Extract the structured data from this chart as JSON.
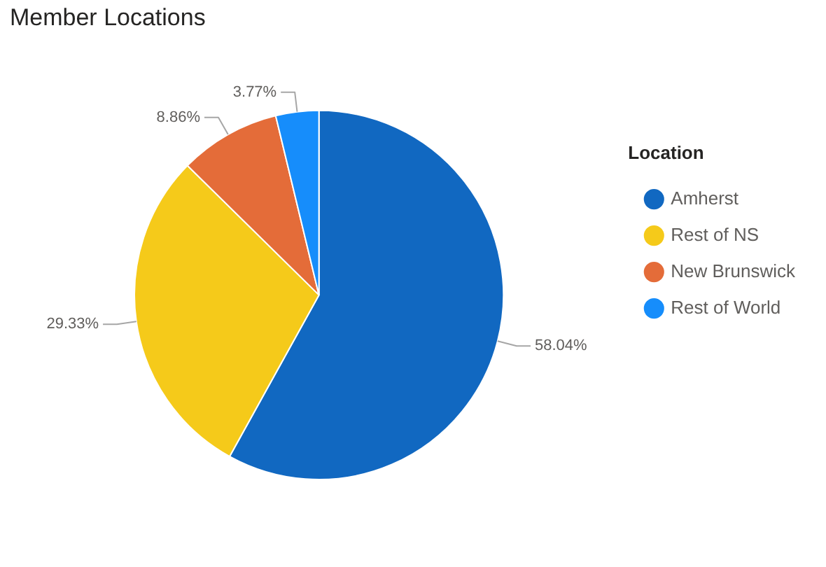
{
  "chart_data": {
    "type": "pie",
    "title": "Member Locations",
    "legend_title": "Location",
    "legend": "right",
    "categories": [
      "Amherst",
      "Rest of NS",
      "New Brunswick",
      "Rest of World"
    ],
    "values": [
      58.04,
      29.33,
      8.86,
      3.77
    ],
    "colors": [
      "#1168c1",
      "#f5ca1a",
      "#e46c39",
      "#168dfb"
    ],
    "value_labels": [
      "58.04%",
      "29.33%",
      "8.86%",
      "3.77%"
    ]
  }
}
